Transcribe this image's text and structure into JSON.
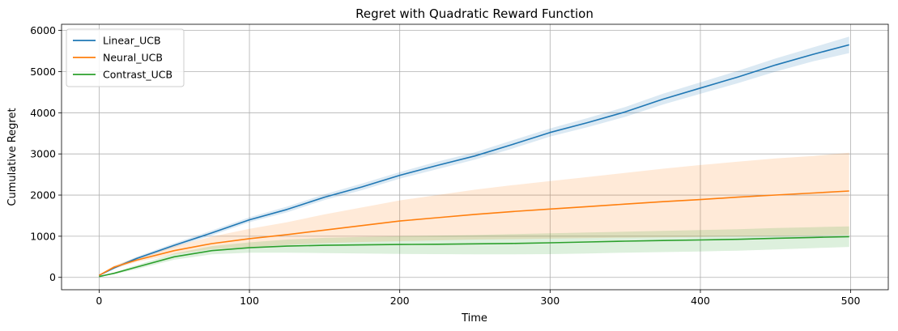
{
  "chart_data": {
    "type": "line",
    "title": "Regret with Quadratic Reward Function",
    "xlabel": "Time",
    "ylabel": "Cumulative Regret",
    "xlim": [
      -25,
      525
    ],
    "ylim": [
      -300,
      6150
    ],
    "xticks": [
      0,
      100,
      200,
      300,
      400,
      500
    ],
    "yticks": [
      0,
      1000,
      2000,
      3000,
      4000,
      5000,
      6000
    ],
    "grid": true,
    "legend_position": "top-left",
    "series": [
      {
        "name": "Linear_UCB",
        "color": "#1f77b4",
        "x": [
          0,
          10,
          25,
          50,
          75,
          100,
          125,
          150,
          175,
          200,
          225,
          250,
          275,
          300,
          325,
          350,
          375,
          400,
          425,
          450,
          475,
          499
        ],
        "y": [
          50,
          230,
          460,
          780,
          1080,
          1400,
          1650,
          1950,
          2200,
          2480,
          2720,
          2950,
          3230,
          3520,
          3760,
          4020,
          4330,
          4600,
          4870,
          5160,
          5420,
          5650
        ],
        "lower": [
          40,
          200,
          420,
          730,
          1020,
          1340,
          1580,
          1880,
          2120,
          2400,
          2630,
          2860,
          3130,
          3420,
          3650,
          3900,
          4200,
          4460,
          4720,
          5000,
          5250,
          5450
        ],
        "upper": [
          60,
          260,
          500,
          830,
          1140,
          1460,
          1720,
          2020,
          2280,
          2560,
          2810,
          3040,
          3330,
          3620,
          3870,
          4140,
          4460,
          4740,
          5020,
          5320,
          5590,
          5850
        ]
      },
      {
        "name": "Neural_UCB",
        "color": "#ff7f0e",
        "x": [
          0,
          10,
          25,
          50,
          75,
          100,
          125,
          150,
          175,
          200,
          225,
          250,
          275,
          300,
          325,
          350,
          375,
          400,
          425,
          450,
          475,
          499
        ],
        "y": [
          50,
          250,
          420,
          650,
          820,
          940,
          1040,
          1150,
          1260,
          1370,
          1450,
          1530,
          1600,
          1660,
          1720,
          1780,
          1840,
          1890,
          1950,
          2000,
          2050,
          2100
        ],
        "lower": [
          40,
          220,
          370,
          560,
          690,
          740,
          790,
          830,
          860,
          880,
          900,
          920,
          930,
          940,
          955,
          965,
          975,
          985,
          995,
          1005,
          1015,
          1030
        ],
        "upper": [
          60,
          290,
          480,
          760,
          990,
          1180,
          1340,
          1530,
          1700,
          1870,
          2000,
          2130,
          2240,
          2340,
          2440,
          2540,
          2640,
          2730,
          2810,
          2890,
          2950,
          3030
        ]
      },
      {
        "name": "Contrast_UCB",
        "color": "#2ca02c",
        "x": [
          0,
          10,
          25,
          50,
          75,
          100,
          125,
          150,
          175,
          200,
          225,
          250,
          275,
          300,
          325,
          350,
          375,
          400,
          425,
          450,
          475,
          499
        ],
        "y": [
          20,
          100,
          250,
          500,
          650,
          720,
          760,
          780,
          790,
          800,
          805,
          815,
          825,
          840,
          860,
          880,
          895,
          910,
          925,
          950,
          970,
          990
        ],
        "lower": [
          15,
          80,
          200,
          430,
          560,
          600,
          600,
          590,
          580,
          570,
          565,
          560,
          560,
          565,
          580,
          600,
          615,
          630,
          650,
          680,
          710,
          740
        ],
        "upper": [
          25,
          120,
          300,
          580,
          760,
          850,
          920,
          960,
          985,
          1000,
          1015,
          1030,
          1050,
          1070,
          1090,
          1110,
          1130,
          1150,
          1170,
          1200,
          1220,
          1240
        ]
      }
    ]
  }
}
